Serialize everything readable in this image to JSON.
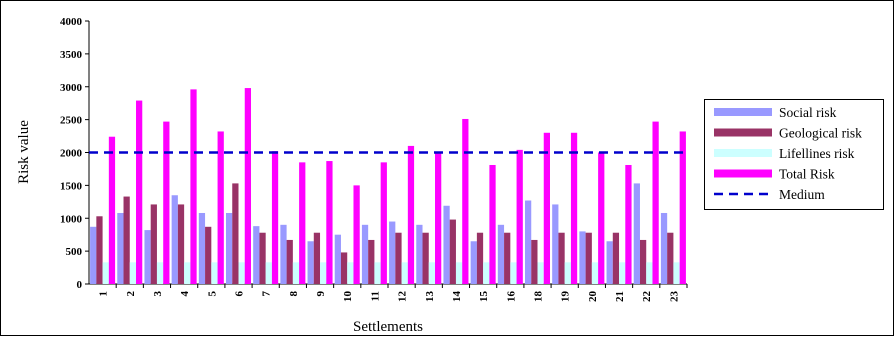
{
  "chart_data": {
    "type": "bar",
    "xlabel": "Settlements",
    "ylabel": "Risk value",
    "ylim": [
      0,
      4000
    ],
    "yticks": [
      0,
      500,
      1000,
      1500,
      2000,
      2500,
      3000,
      3500,
      4000
    ],
    "grid": false,
    "legend_position": "right",
    "categories": [
      "1",
      "2",
      "3",
      "4",
      "5",
      "6",
      "7",
      "8",
      "9",
      "10",
      "11",
      "12",
      "13",
      "14",
      "15",
      "16",
      "18",
      "19",
      "20",
      "21",
      "22",
      "23"
    ],
    "series": [
      {
        "name": "Social risk",
        "color": "#9999ff",
        "values": [
          870,
          1080,
          820,
          1350,
          1080,
          1080,
          880,
          900,
          650,
          750,
          900,
          950,
          900,
          1190,
          650,
          900,
          1270,
          1210,
          800,
          650,
          1530,
          1080
        ]
      },
      {
        "name": "Geological risk",
        "color": "#993366",
        "values": [
          1030,
          1330,
          1210,
          1210,
          870,
          1530,
          780,
          670,
          780,
          480,
          670,
          780,
          780,
          980,
          780,
          780,
          670,
          780,
          780,
          780,
          670,
          780
        ]
      },
      {
        "name": "Lifellines risk",
        "color": "#ccffff",
        "values": [
          330,
          330,
          330,
          330,
          330,
          330,
          330,
          330,
          330,
          330,
          330,
          330,
          330,
          330,
          330,
          330,
          330,
          330,
          330,
          330,
          330,
          330
        ]
      },
      {
        "name": "Total Risk",
        "color": "#ff00ff",
        "values": [
          2240,
          2790,
          2470,
          2960,
          2320,
          2980,
          2020,
          1850,
          1870,
          1500,
          1850,
          2100,
          2000,
          2510,
          1810,
          2040,
          2300,
          2300,
          2000,
          1810,
          2470,
          2320
        ]
      }
    ],
    "reference_line": {
      "name": "Medium",
      "value": 2000,
      "color": "#0000cc",
      "style": "dashed"
    }
  }
}
